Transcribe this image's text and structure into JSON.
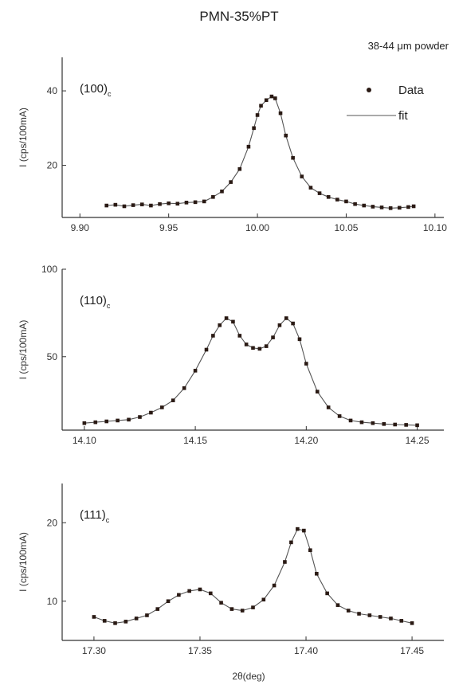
{
  "figure": {
    "title": "PMN-35%PT",
    "subtitle": "38-44 μm powder",
    "xlabel": "2θ(deg)",
    "legend": {
      "data_label": "Data",
      "fit_label": "fit",
      "placement": "top-right"
    },
    "colors": {
      "marker": "#2a1a14",
      "line": "#555555",
      "axis": "#333333"
    }
  },
  "chart_data": [
    {
      "type": "scatter",
      "panel_label": "(100)",
      "panel_label_sub": "c",
      "ylabel": "I (cps/100mA)",
      "xlim": [
        9.89,
        10.105
      ],
      "ylim": [
        6,
        49
      ],
      "xticks": [
        9.9,
        9.95,
        10.0,
        10.05,
        10.1
      ],
      "xtick_labels": [
        "9.90",
        "9.95",
        "10.00",
        "10.05",
        "10.10"
      ],
      "yticks": [
        20,
        40
      ],
      "ytick_labels": [
        "20",
        "40"
      ],
      "x": [
        9.915,
        9.92,
        9.925,
        9.93,
        9.935,
        9.94,
        9.945,
        9.95,
        9.955,
        9.96,
        9.965,
        9.97,
        9.975,
        9.98,
        9.985,
        9.99,
        9.995,
        9.998,
        10.0,
        10.002,
        10.005,
        10.008,
        10.01,
        10.013,
        10.016,
        10.02,
        10.025,
        10.03,
        10.035,
        10.04,
        10.045,
        10.05,
        10.055,
        10.06,
        10.065,
        10.07,
        10.075,
        10.08,
        10.085,
        10.088
      ],
      "y": [
        9.2,
        9.4,
        9.0,
        9.3,
        9.5,
        9.2,
        9.6,
        9.8,
        9.7,
        10.0,
        10.1,
        10.3,
        11.5,
        13.0,
        15.5,
        19.0,
        25.0,
        30.0,
        33.5,
        36.0,
        37.5,
        38.5,
        38.0,
        34.0,
        28.0,
        22.0,
        17.0,
        14.0,
        12.5,
        11.5,
        10.8,
        10.3,
        9.6,
        9.2,
        8.9,
        8.7,
        8.5,
        8.6,
        8.8,
        9.0
      ]
    },
    {
      "type": "scatter",
      "panel_label": "(110)",
      "panel_label_sub": "c",
      "ylabel": "I (cps/100mA)",
      "xlim": [
        14.09,
        14.262
      ],
      "ylim": [
        8,
        100
      ],
      "xticks": [
        14.1,
        14.15,
        14.2,
        14.25
      ],
      "xtick_labels": [
        "14.10",
        "14.15",
        "14.20",
        "14.25"
      ],
      "yticks": [
        50,
        100
      ],
      "ytick_labels": [
        "50",
        "100"
      ],
      "x": [
        14.1,
        14.105,
        14.11,
        14.115,
        14.12,
        14.125,
        14.13,
        14.135,
        14.14,
        14.145,
        14.15,
        14.155,
        14.158,
        14.161,
        14.164,
        14.167,
        14.17,
        14.173,
        14.176,
        14.179,
        14.182,
        14.185,
        14.188,
        14.191,
        14.194,
        14.197,
        14.2,
        14.205,
        14.21,
        14.215,
        14.22,
        14.225,
        14.23,
        14.235,
        14.24,
        14.245,
        14.25
      ],
      "y": [
        12.0,
        12.5,
        13.0,
        13.5,
        14.0,
        15.5,
        18.0,
        21.0,
        25.0,
        32.0,
        42.0,
        54.0,
        62.0,
        68.0,
        72.0,
        70.0,
        62.0,
        57.0,
        55.0,
        54.5,
        56.0,
        61.0,
        68.0,
        72.0,
        69.0,
        60.0,
        46.0,
        30.0,
        21.0,
        16.0,
        13.5,
        12.5,
        12.0,
        11.5,
        11.2,
        11.0,
        10.8
      ]
    },
    {
      "type": "scatter",
      "panel_label": "(111)",
      "panel_label_sub": "c",
      "ylabel": "I (cps/100mA)",
      "xlim": [
        17.285,
        17.465
      ],
      "ylim": [
        5,
        25
      ],
      "xticks": [
        17.3,
        17.35,
        17.4,
        17.45
      ],
      "xtick_labels": [
        "17.30",
        "17.35",
        "17.40",
        "17.45"
      ],
      "yticks": [
        10,
        20
      ],
      "ytick_labels": [
        "10",
        "20"
      ],
      "x": [
        17.3,
        17.305,
        17.31,
        17.315,
        17.32,
        17.325,
        17.33,
        17.335,
        17.34,
        17.345,
        17.35,
        17.355,
        17.36,
        17.365,
        17.37,
        17.375,
        17.38,
        17.385,
        17.39,
        17.393,
        17.396,
        17.399,
        17.402,
        17.405,
        17.41,
        17.415,
        17.42,
        17.425,
        17.43,
        17.435,
        17.44,
        17.445,
        17.45
      ],
      "y": [
        8.0,
        7.5,
        7.2,
        7.4,
        7.8,
        8.2,
        9.0,
        10.0,
        10.8,
        11.3,
        11.5,
        11.0,
        9.8,
        9.0,
        8.8,
        9.2,
        10.2,
        12.0,
        15.0,
        17.5,
        19.2,
        19.0,
        16.5,
        13.5,
        11.0,
        9.5,
        8.8,
        8.4,
        8.2,
        8.0,
        7.8,
        7.5,
        7.2
      ]
    }
  ]
}
